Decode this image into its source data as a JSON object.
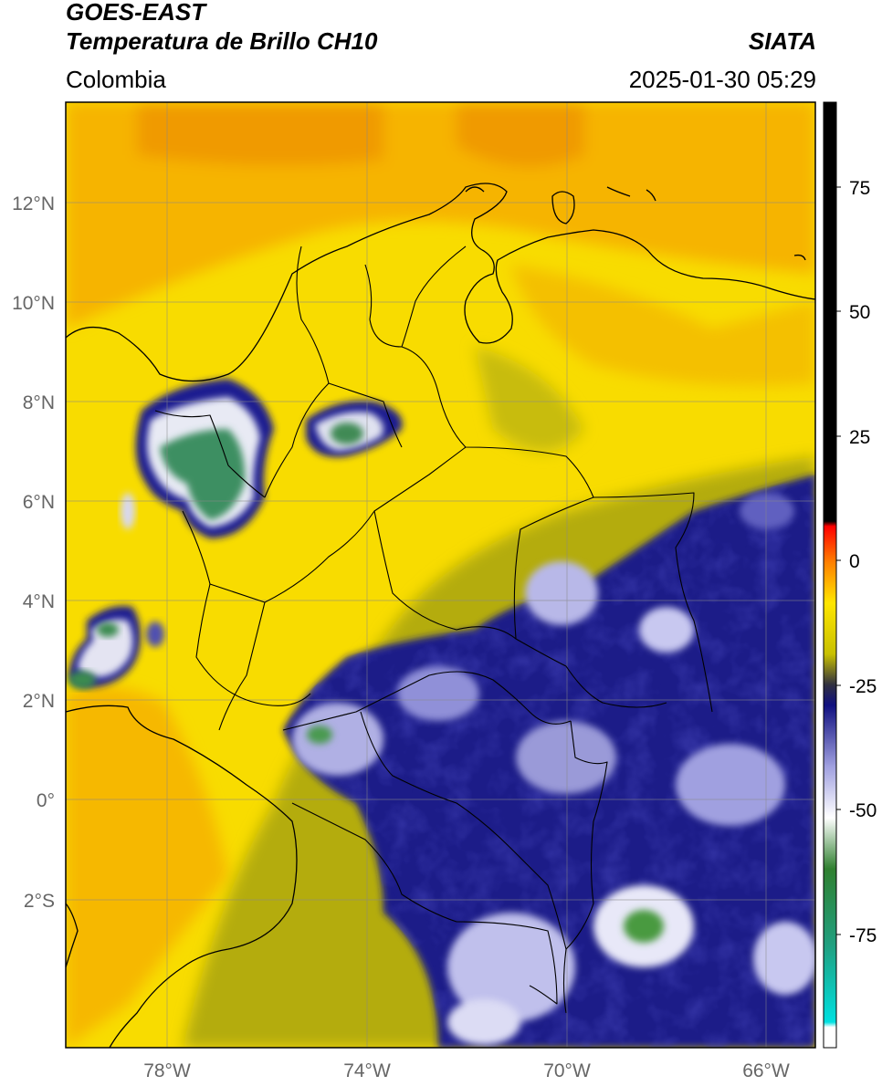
{
  "header": {
    "satellite": "GOES-EAST",
    "product": "Temperatura de Brillo CH10",
    "organization": "SIATA",
    "region": "Colombia",
    "datetime": "2025-01-30 05:29"
  },
  "map": {
    "lon_range": [
      -80,
      -65
    ],
    "lat_range": [
      -5,
      14
    ],
    "lat_ticks": [
      "12°N",
      "10°N",
      "8°N",
      "6°N",
      "4°N",
      "2°N",
      "0°",
      "2°S"
    ],
    "lon_ticks": [
      "78°W",
      "74°W",
      "70°W",
      "66°W"
    ],
    "gridlines": true,
    "background_color": "#f8dc00",
    "coastline_color": "#000000"
  },
  "colorbar": {
    "labels": [
      "75",
      "50",
      "25",
      "0",
      "-25",
      "-50",
      "-75"
    ],
    "range": [
      -95,
      90
    ],
    "stops": [
      {
        "value": 90,
        "color": "#000000"
      },
      {
        "value": 8,
        "color": "#000000"
      },
      {
        "value": 7,
        "color": "#ff0000"
      },
      {
        "value": 0,
        "color": "#ff8000"
      },
      {
        "value": -8,
        "color": "#ffe600"
      },
      {
        "value": -18,
        "color": "#c8c000"
      },
      {
        "value": -24,
        "color": "#303040"
      },
      {
        "value": -28,
        "color": "#101080"
      },
      {
        "value": -40,
        "color": "#a0a0e0"
      },
      {
        "value": -50,
        "color": "#ffffff"
      },
      {
        "value": -60,
        "color": "#308030"
      },
      {
        "value": -75,
        "color": "#20a080"
      },
      {
        "value": -90,
        "color": "#00e0e0"
      },
      {
        "value": -91,
        "color": "#ffffff"
      },
      {
        "value": -95,
        "color": "#ffffff"
      }
    ]
  }
}
